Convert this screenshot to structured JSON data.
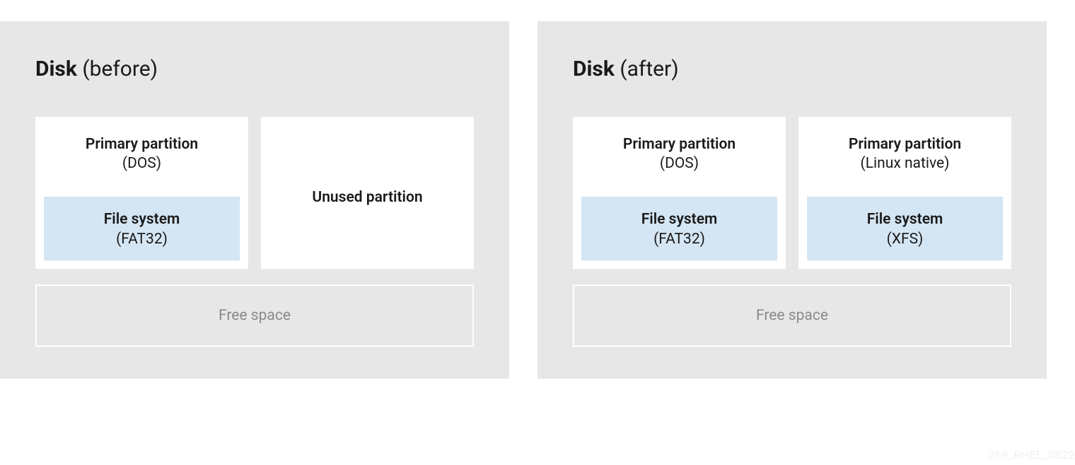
{
  "panels": [
    {
      "title_bold": "Disk",
      "title_rest": " (before)",
      "partitions": [
        {
          "type": "partition",
          "label": "Primary partition",
          "sublabel": "(DOS)",
          "fs_label": "File system",
          "fs_sublabel": "(FAT32)"
        },
        {
          "type": "unused",
          "label": "Unused partition"
        }
      ],
      "free_space": "Free space"
    },
    {
      "title_bold": "Disk",
      "title_rest": " (after)",
      "partitions": [
        {
          "type": "partition",
          "label": "Primary partition",
          "sublabel": "(DOS)",
          "fs_label": "File system",
          "fs_sublabel": "(FAT32)"
        },
        {
          "type": "partition",
          "label": "Primary partition",
          "sublabel": "(Linux native)",
          "fs_label": "File system",
          "fs_sublabel": "(XFS)"
        }
      ],
      "free_space": "Free space"
    }
  ],
  "watermark": "269_RHEL_0822",
  "colors": {
    "panel_bg": "#e7e7e7",
    "partition_bg": "#ffffff",
    "fs_bg": "#d4e5f3",
    "text": "#1a1a1a",
    "muted": "#8a8a8a",
    "watermark": "#f0f0f0",
    "free_border": "#ffffff"
  }
}
